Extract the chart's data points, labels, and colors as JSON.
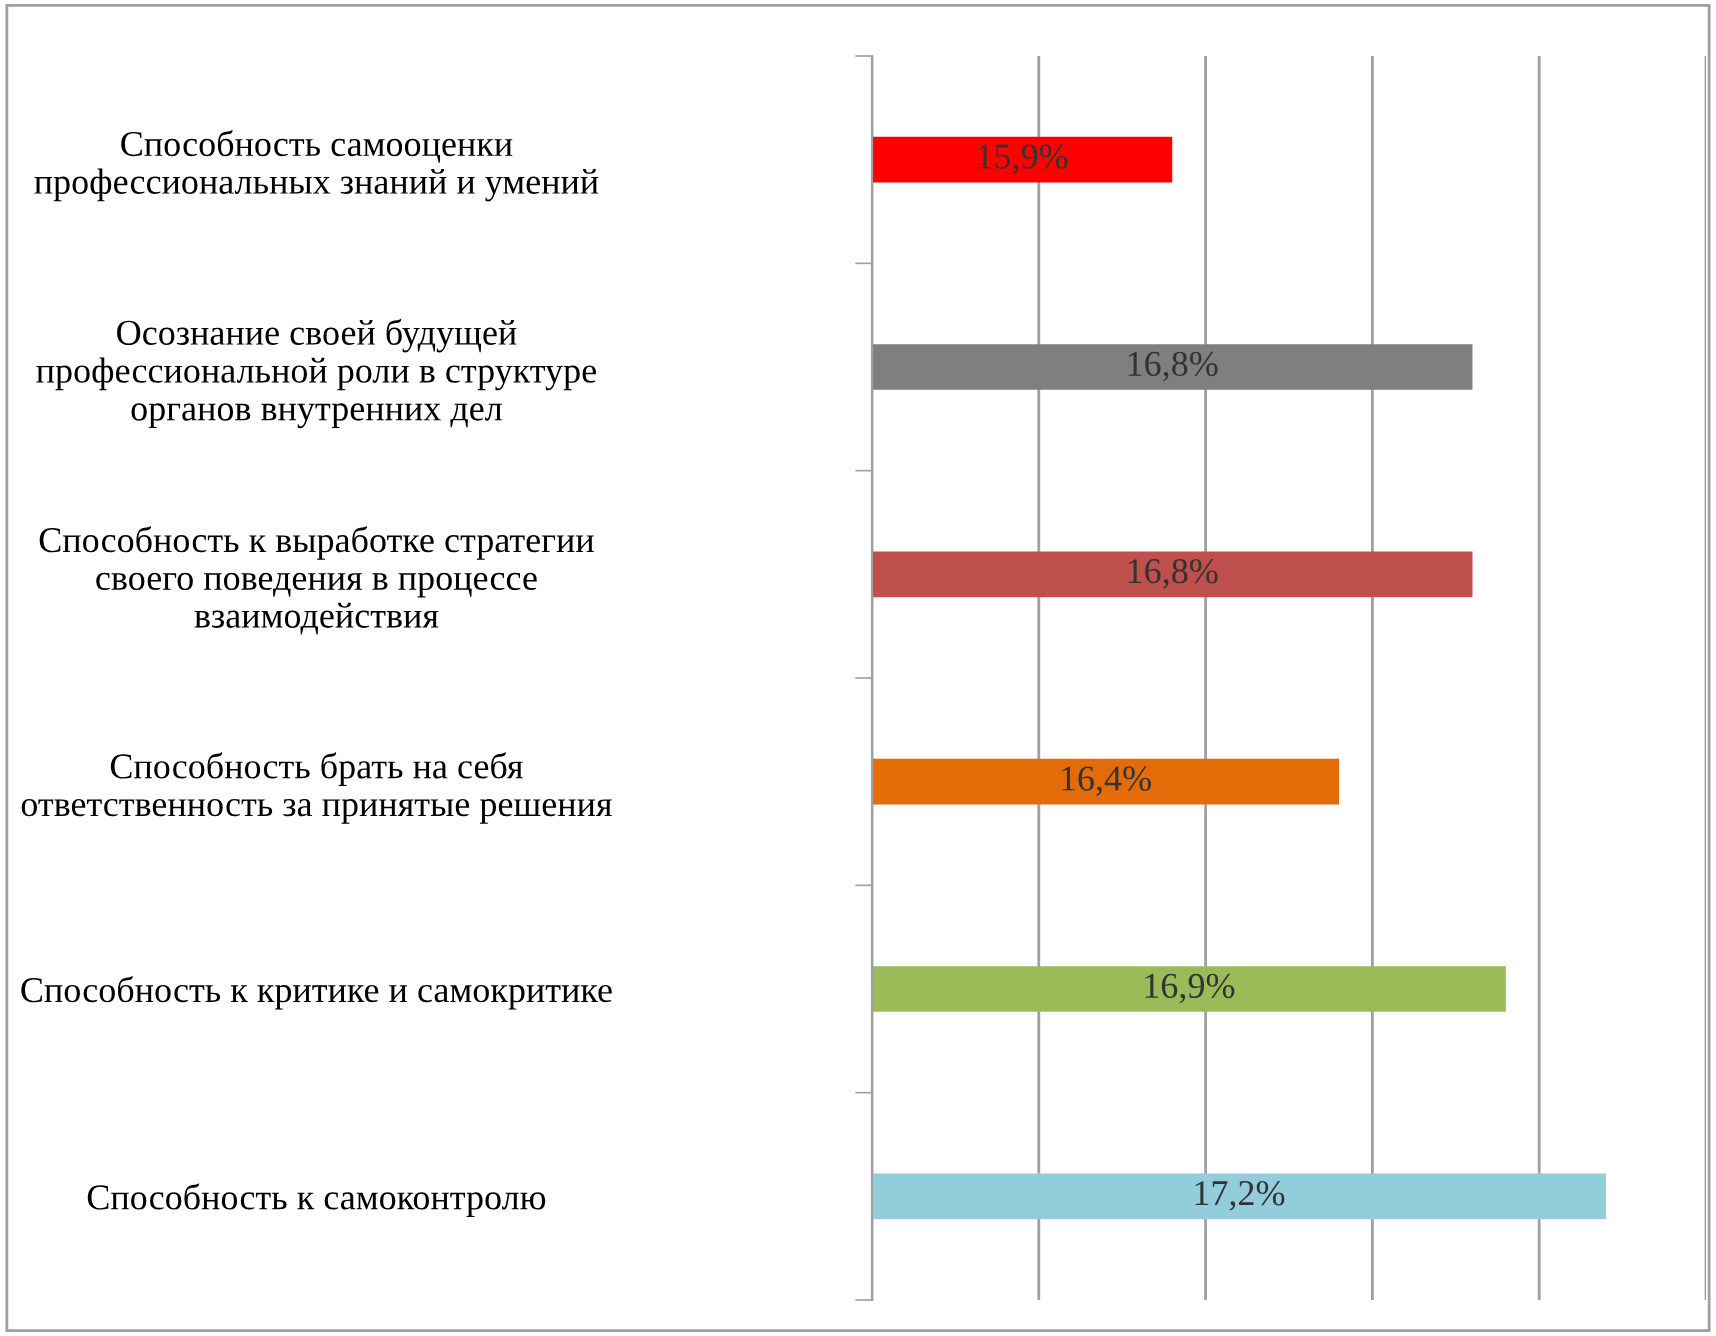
{
  "chart_data": {
    "type": "bar",
    "orientation": "horizontal",
    "categories": [
      "Способность самооценки\nпрофессиональных знаний и умений",
      "Осознание своей будущей\nпрофессиональной роли в структуре\nорганов внутренних дел",
      "Способность к выработке стратегии\nсвоего поведения в процессе\nвзаимодействия",
      "Способность брать на себя\nответственность за принятые решения",
      "Способность к критике и самокритике",
      "Способность к самоконтролю"
    ],
    "values": [
      15.9,
      16.8,
      16.8,
      16.4,
      16.9,
      17.2
    ],
    "colors": [
      "#ff0000",
      "#7f7f7f",
      "#c0504d",
      "#e36c09",
      "#9bbb59",
      "#92cddc"
    ],
    "value_labels": [
      "15,9%",
      "16,8%",
      "16,8%",
      "16,4%",
      "16,9%",
      "17,2%"
    ],
    "xlim": [
      15,
      17.5
    ],
    "xticks": [
      {
        "value": 15,
        "label": null
      },
      {
        "value": 15.5,
        "label": null
      },
      {
        "value": 16,
        "label": null
      },
      {
        "value": 16.5,
        "label": null
      },
      {
        "value": 17,
        "label": null
      },
      {
        "value": 17.5,
        "label": null
      }
    ],
    "tick_labels": "y",
    "grid": "x",
    "legend": false
  }
}
